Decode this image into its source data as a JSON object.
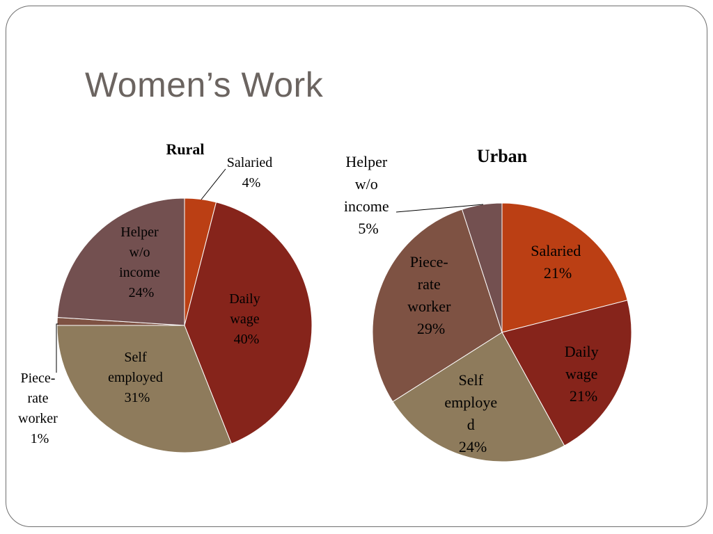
{
  "slide": {
    "title": "Women’s Work"
  },
  "chart_data": [
    {
      "type": "pie",
      "title": "Rural",
      "labels": [
        "Salaried",
        "Daily wage",
        "Self employed",
        "Piece-rate worker",
        "Helper w/o income"
      ],
      "values": [
        4,
        40,
        31,
        1,
        24
      ],
      "display": [
        "Salaried 4%",
        "Daily wage 40%",
        "Self employed 31%",
        "Piece-rate worker 1%",
        "Helper w/o income 24%"
      ],
      "colors": [
        "#bb3f14",
        "#86241b",
        "#8e7b5c",
        "#7e5243",
        "#735050"
      ],
      "unit": "%"
    },
    {
      "type": "pie",
      "title": "Urban",
      "labels": [
        "Salaried",
        "Daily wage",
        "Self employed",
        "Piece-rate worker",
        "Helper w/o income"
      ],
      "values": [
        21,
        21,
        24,
        29,
        5
      ],
      "display": [
        "Salaried 21%",
        "Daily wage 21%",
        "Self employed 24%",
        "Piece-rate worker 29%",
        "Helper w/o income 5%"
      ],
      "colors": [
        "#bb3f14",
        "#86241b",
        "#8e7b5c",
        "#7e5243",
        "#735050"
      ],
      "unit": "%"
    }
  ]
}
